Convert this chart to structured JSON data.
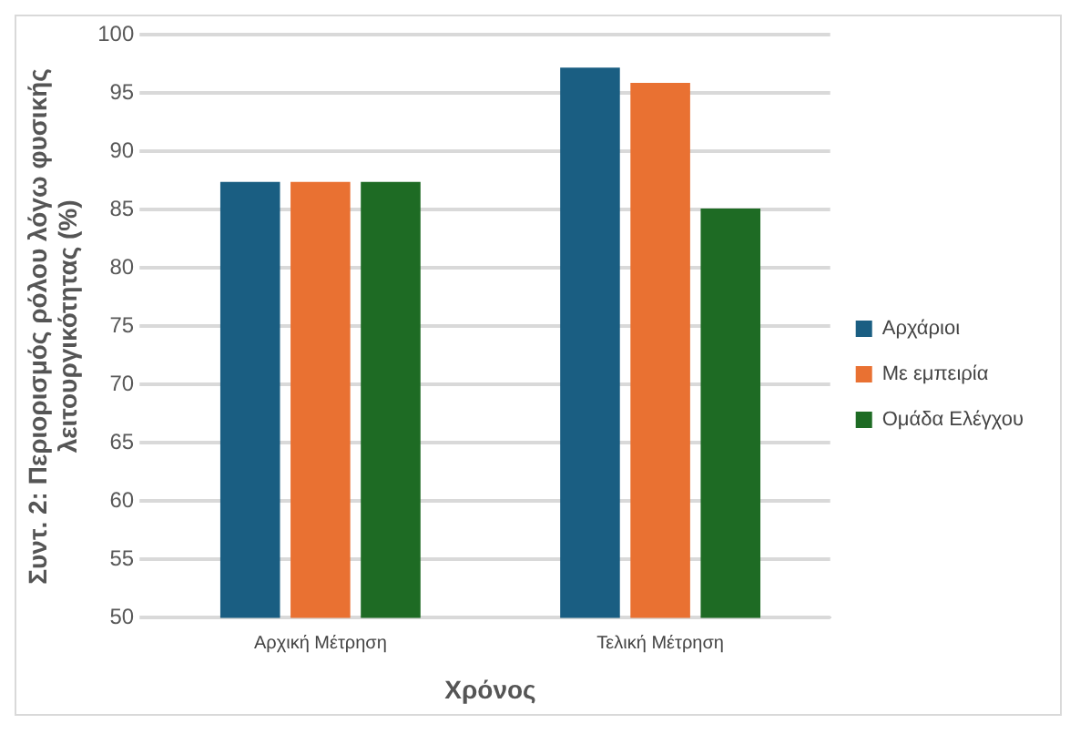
{
  "chart_data": {
    "type": "bar",
    "xlabel": "Χρόνος",
    "ylabel": "Συντ. 2: Περιορισμός ρόλου λόγω φυσικής\nλειτουργικότητας (%)",
    "categories": [
      "Αρχική Μέτρηση",
      "Τελική Μέτρηση"
    ],
    "series": [
      {
        "name": "Αρχάριοι",
        "color": "#1a5e82",
        "values": [
          87.4,
          97.2
        ]
      },
      {
        "name": "Με εμπειρία",
        "color": "#e97132",
        "values": [
          87.4,
          95.9
        ]
      },
      {
        "name": "Ομάδα Ελέγχου",
        "color": "#1e6b24",
        "values": [
          87.4,
          85.1
        ]
      }
    ],
    "ylim": [
      50,
      100
    ],
    "yticks": [
      50,
      55,
      60,
      65,
      70,
      75,
      80,
      85,
      90,
      95,
      100
    ],
    "grid": "y",
    "legend": "right"
  }
}
